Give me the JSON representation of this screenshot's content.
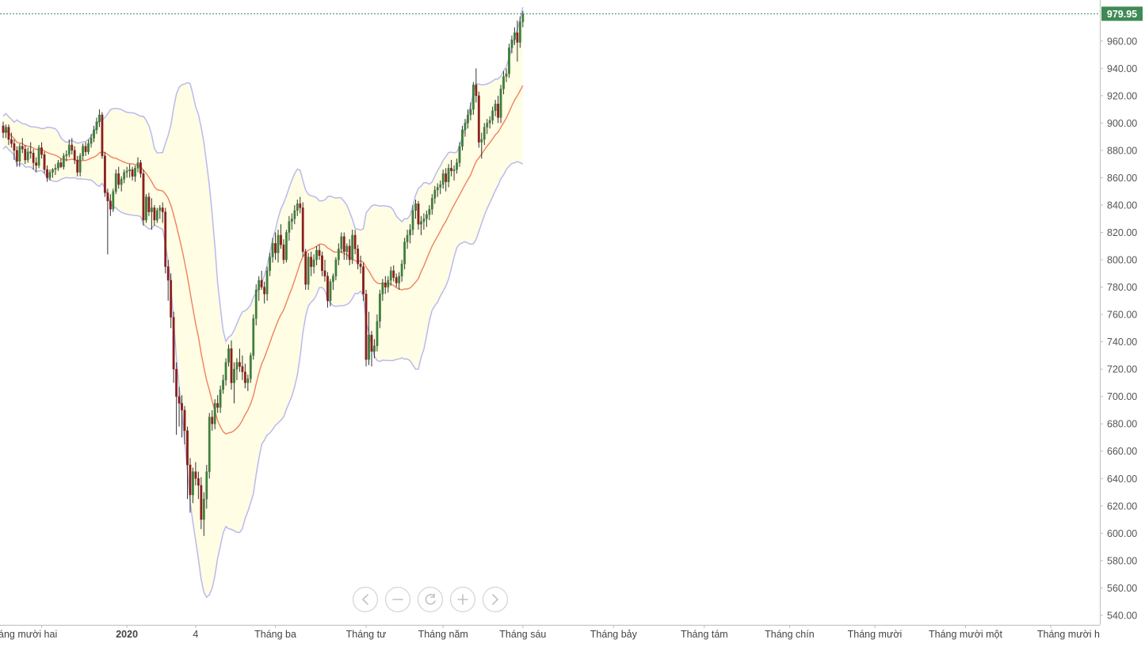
{
  "chart_data": {
    "type": "candlestick",
    "overlays": [
      "Bollinger Bands (upper/lower)",
      "Moving average (middle band)"
    ],
    "last_price": "979.95",
    "y_ticks": [
      "960.00",
      "940.00",
      "920.00",
      "900.00",
      "880.00",
      "860.00",
      "840.00",
      "820.00",
      "800.00",
      "780.00",
      "760.00",
      "740.00",
      "720.00",
      "700.00",
      "680.00",
      "660.00",
      "640.00",
      "620.00",
      "600.00",
      "580.00",
      "560.00",
      "540.00"
    ],
    "ylim": [
      533,
      990
    ],
    "x_tick_labels": [
      "áng mười hai",
      "2020",
      "4",
      "Tháng ba",
      "Tháng tư",
      "Tháng năm",
      "Tháng sáu",
      "Tháng bảy",
      "Tháng tám",
      "Tháng chín",
      "Tháng mười",
      "Tháng mười một",
      "Tháng mười h"
    ],
    "x_tick_index": [
      14,
      45,
      70,
      99,
      132,
      160,
      189,
      222,
      255,
      286,
      317,
      350,
      381
    ],
    "grid": false,
    "legend": "none",
    "colors": {
      "up": "#3e7f3c",
      "down": "#8b1e1e",
      "wick": "#333333",
      "band_fill": "#fffde3",
      "band_line": "#b9b9f0",
      "ma_line": "#f08060",
      "last_price_bg": "#3f8a55",
      "last_price_line": "#2e8b57"
    },
    "candles": [
      [
        898,
        901,
        889,
        893
      ],
      [
        893,
        899,
        889,
        897
      ],
      [
        897,
        899,
        884,
        888
      ],
      [
        888,
        893,
        882,
        885
      ],
      [
        885,
        888,
        873,
        880
      ],
      [
        880,
        883,
        868,
        872
      ],
      [
        872,
        885,
        868,
        883
      ],
      [
        883,
        889,
        878,
        881
      ],
      [
        881,
        884,
        870,
        873
      ],
      [
        873,
        882,
        871,
        879
      ],
      [
        879,
        886,
        874,
        878
      ],
      [
        878,
        881,
        866,
        871
      ],
      [
        871,
        875,
        864,
        869
      ],
      [
        869,
        884,
        867,
        882
      ],
      [
        882,
        886,
        874,
        877
      ],
      [
        877,
        879,
        863,
        866
      ],
      [
        866,
        869,
        857,
        860
      ],
      [
        860,
        866,
        858,
        864
      ],
      [
        864,
        867,
        860,
        866
      ],
      [
        866,
        870,
        862,
        867
      ],
      [
        867,
        873,
        865,
        871
      ],
      [
        871,
        874,
        867,
        868
      ],
      [
        868,
        878,
        866,
        876
      ],
      [
        876,
        880,
        872,
        877
      ],
      [
        877,
        888,
        875,
        884
      ],
      [
        884,
        889,
        877,
        880
      ],
      [
        880,
        883,
        870,
        873
      ],
      [
        873,
        876,
        861,
        864
      ],
      [
        864,
        878,
        861,
        876
      ],
      [
        876,
        885,
        873,
        883
      ],
      [
        883,
        886,
        876,
        879
      ],
      [
        879,
        888,
        877,
        885
      ],
      [
        885,
        892,
        882,
        889
      ],
      [
        889,
        898,
        886,
        895
      ],
      [
        895,
        904,
        892,
        901
      ],
      [
        901,
        910,
        897,
        906
      ],
      [
        906,
        908,
        874,
        876
      ],
      [
        876,
        879,
        846,
        849
      ],
      [
        849,
        852,
        804,
        843
      ],
      [
        843,
        848,
        832,
        837
      ],
      [
        837,
        852,
        835,
        850
      ],
      [
        850,
        866,
        848,
        863
      ],
      [
        863,
        868,
        852,
        855
      ],
      [
        855,
        861,
        850,
        859
      ],
      [
        859,
        866,
        856,
        864
      ],
      [
        864,
        868,
        860,
        865
      ],
      [
        865,
        870,
        860,
        866
      ],
      [
        866,
        868,
        858,
        861
      ],
      [
        861,
        869,
        857,
        867
      ],
      [
        867,
        875,
        864,
        871
      ],
      [
        871,
        873,
        860,
        863
      ],
      [
        863,
        866,
        825,
        829
      ],
      [
        829,
        848,
        827,
        846
      ],
      [
        846,
        849,
        832,
        835
      ],
      [
        835,
        845,
        822,
        838
      ],
      [
        838,
        840,
        825,
        829
      ],
      [
        829,
        838,
        827,
        836
      ],
      [
        836,
        840,
        830,
        838
      ],
      [
        838,
        842,
        827,
        835
      ],
      [
        835,
        838,
        790,
        795
      ],
      [
        795,
        800,
        770,
        785
      ],
      [
        785,
        790,
        750,
        758
      ],
      [
        758,
        762,
        710,
        720
      ],
      [
        720,
        725,
        672,
        700
      ],
      [
        700,
        707,
        678,
        695
      ],
      [
        695,
        701,
        670,
        690
      ],
      [
        690,
        693,
        665,
        675
      ],
      [
        675,
        678,
        625,
        650
      ],
      [
        650,
        655,
        615,
        628
      ],
      [
        628,
        648,
        622,
        645
      ],
      [
        645,
        652,
        635,
        640
      ],
      [
        640,
        645,
        625,
        635
      ],
      [
        635,
        641,
        603,
        610
      ],
      [
        610,
        630,
        598,
        625
      ],
      [
        625,
        650,
        618,
        645
      ],
      [
        645,
        688,
        640,
        685
      ],
      [
        685,
        690,
        675,
        680
      ],
      [
        680,
        698,
        676,
        695
      ],
      [
        695,
        701,
        688,
        692
      ],
      [
        692,
        708,
        688,
        705
      ],
      [
        705,
        716,
        702,
        712
      ],
      [
        712,
        728,
        708,
        725
      ],
      [
        725,
        738,
        722,
        735
      ],
      [
        735,
        741,
        705,
        710
      ],
      [
        710,
        725,
        695,
        720
      ],
      [
        720,
        728,
        712,
        725
      ],
      [
        725,
        735,
        718,
        722
      ],
      [
        722,
        730,
        712,
        718
      ],
      [
        718,
        724,
        706,
        710
      ],
      [
        710,
        716,
        704,
        713
      ],
      [
        713,
        732,
        710,
        730
      ],
      [
        730,
        760,
        727,
        757
      ],
      [
        757,
        782,
        752,
        778
      ],
      [
        778,
        788,
        770,
        785
      ],
      [
        785,
        792,
        778,
        780
      ],
      [
        780,
        784,
        768,
        775
      ],
      [
        775,
        795,
        770,
        792
      ],
      [
        792,
        805,
        788,
        802
      ],
      [
        802,
        816,
        798,
        812
      ],
      [
        812,
        820,
        800,
        805
      ],
      [
        805,
        822,
        798,
        818
      ],
      [
        818,
        826,
        808,
        811
      ],
      [
        811,
        815,
        797,
        800
      ],
      [
        800,
        822,
        798,
        820
      ],
      [
        820,
        832,
        814,
        828
      ],
      [
        828,
        834,
        822,
        830
      ],
      [
        830,
        840,
        826,
        836
      ],
      [
        836,
        844,
        832,
        841
      ],
      [
        841,
        846,
        834,
        838
      ],
      [
        838,
        842,
        802,
        806
      ],
      [
        806,
        808,
        778,
        782
      ],
      [
        782,
        805,
        778,
        802
      ],
      [
        802,
        806,
        788,
        795
      ],
      [
        795,
        804,
        790,
        800
      ],
      [
        800,
        810,
        796,
        807
      ],
      [
        807,
        811,
        800,
        803
      ],
      [
        803,
        806,
        788,
        792
      ],
      [
        792,
        800,
        784,
        788
      ],
      [
        788,
        791,
        765,
        770
      ],
      [
        770,
        786,
        766,
        784
      ],
      [
        784,
        790,
        778,
        788
      ],
      [
        788,
        802,
        785,
        800
      ],
      [
        800,
        812,
        796,
        808
      ],
      [
        808,
        820,
        805,
        817
      ],
      [
        817,
        820,
        800,
        806
      ],
      [
        806,
        812,
        800,
        810
      ],
      [
        810,
        815,
        796,
        800
      ],
      [
        800,
        822,
        797,
        818
      ],
      [
        818,
        822,
        804,
        808
      ],
      [
        808,
        811,
        793,
        797
      ],
      [
        797,
        803,
        790,
        795
      ],
      [
        795,
        798,
        770,
        775
      ],
      [
        775,
        778,
        722,
        727
      ],
      [
        727,
        762,
        723,
        745
      ],
      [
        745,
        748,
        722,
        733
      ],
      [
        733,
        742,
        728,
        737
      ],
      [
        737,
        760,
        733,
        755
      ],
      [
        755,
        778,
        750,
        775
      ],
      [
        775,
        786,
        770,
        783
      ],
      [
        783,
        788,
        775,
        780
      ],
      [
        780,
        788,
        776,
        785
      ],
      [
        785,
        795,
        781,
        792
      ],
      [
        792,
        796,
        784,
        787
      ],
      [
        787,
        790,
        780,
        783
      ],
      [
        783,
        791,
        778,
        788
      ],
      [
        788,
        800,
        784,
        797
      ],
      [
        797,
        816,
        793,
        813
      ],
      [
        813,
        822,
        808,
        818
      ],
      [
        818,
        826,
        812,
        822
      ],
      [
        822,
        840,
        818,
        836
      ],
      [
        836,
        844,
        830,
        841
      ],
      [
        841,
        843,
        822,
        826
      ],
      [
        826,
        832,
        818,
        828
      ],
      [
        828,
        834,
        822,
        830
      ],
      [
        830,
        836,
        824,
        833
      ],
      [
        833,
        840,
        829,
        837
      ],
      [
        837,
        848,
        833,
        845
      ],
      [
        845,
        854,
        841,
        851
      ],
      [
        851,
        856,
        846,
        853
      ],
      [
        853,
        858,
        848,
        855
      ],
      [
        855,
        866,
        852,
        863
      ],
      [
        863,
        867,
        850,
        857
      ],
      [
        857,
        870,
        853,
        867
      ],
      [
        867,
        873,
        861,
        865
      ],
      [
        865,
        869,
        858,
        866
      ],
      [
        866,
        874,
        863,
        871
      ],
      [
        871,
        886,
        868,
        883
      ],
      [
        883,
        898,
        880,
        895
      ],
      [
        895,
        903,
        890,
        900
      ],
      [
        900,
        910,
        896,
        906
      ],
      [
        906,
        915,
        902,
        910
      ],
      [
        910,
        930,
        906,
        928
      ],
      [
        928,
        940,
        915,
        920
      ],
      [
        920,
        923,
        882,
        886
      ],
      [
        886,
        893,
        874,
        888
      ],
      [
        888,
        900,
        884,
        897
      ],
      [
        897,
        903,
        892,
        900
      ],
      [
        900,
        905,
        896,
        902
      ],
      [
        902,
        912,
        899,
        909
      ],
      [
        909,
        917,
        905,
        914
      ],
      [
        914,
        920,
        900,
        904
      ],
      [
        904,
        928,
        900,
        925
      ],
      [
        925,
        938,
        921,
        934
      ],
      [
        934,
        940,
        930,
        936
      ],
      [
        936,
        958,
        933,
        955
      ],
      [
        955,
        964,
        951,
        961
      ],
      [
        961,
        970,
        957,
        966
      ],
      [
        966,
        975,
        945,
        959
      ],
      [
        959,
        978,
        955,
        974
      ],
      [
        974,
        982,
        970,
        980
      ]
    ]
  }
}
